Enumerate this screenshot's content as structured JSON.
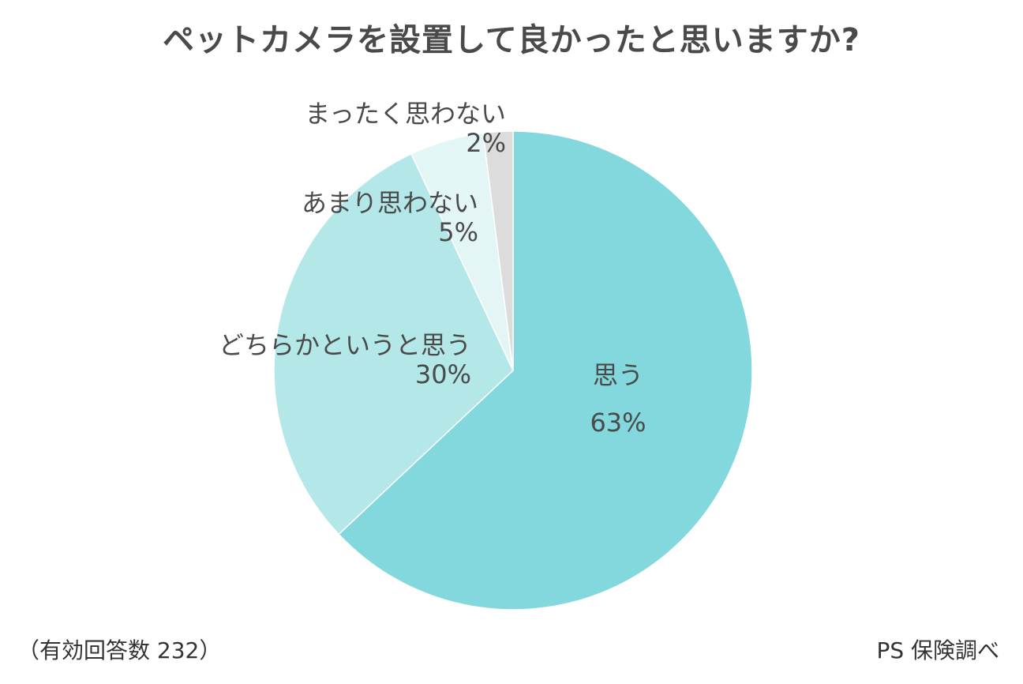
{
  "title": "ペットカメラを設置して良かったと思いますか?",
  "footnote_left": "（有効回答数 232）",
  "footnote_right": "PS 保険調べ",
  "chart_data": {
    "type": "pie",
    "title": "ペットカメラを設置して良かったと思いますか?",
    "start": "12 o'clock",
    "direction": "clockwise",
    "slices": [
      {
        "label": "思う",
        "value": 63,
        "value_label": "63%",
        "color": "#82d8dc"
      },
      {
        "label": "どちらかというと思う",
        "value": 30,
        "value_label": "30%",
        "color": "#b4e7e8"
      },
      {
        "label": "あまり思わない",
        "value": 5,
        "value_label": "5%",
        "color": "#e4f5f6"
      },
      {
        "label": "まったく思わない",
        "value": 2,
        "value_label": "2%",
        "color": "#dcdcdc"
      }
    ]
  }
}
